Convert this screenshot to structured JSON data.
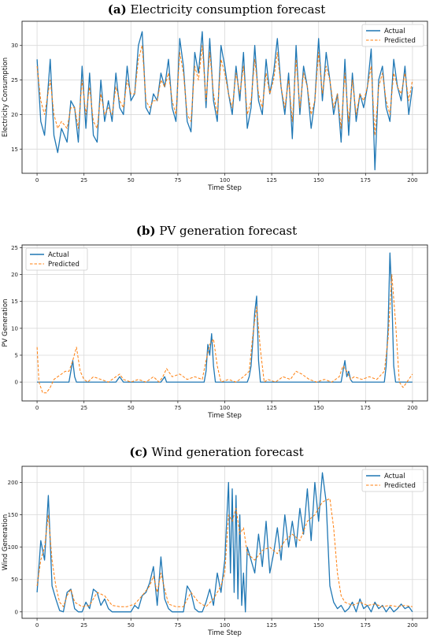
{
  "colors": {
    "actual": "#1f77b4",
    "predicted": "#ff7f0e",
    "grid": "#d9d9d9"
  },
  "chart_data": [
    {
      "type": "line",
      "title_letter": "(a)",
      "title": "Electricity consumption forecast",
      "xlabel": "Time Step",
      "ylabel": "Electricity Consumption",
      "xlim": [
        -8,
        208
      ],
      "ylim": [
        11.5,
        33.5
      ],
      "xticks": [
        0,
        25,
        50,
        75,
        100,
        125,
        150,
        175,
        200
      ],
      "yticks": [
        15,
        20,
        25,
        30
      ],
      "grid": true,
      "legend": "top-right",
      "series": [
        {
          "name": "Actual",
          "style": "solid",
          "x": [
            0,
            2,
            4,
            7,
            9,
            11,
            13,
            16,
            18,
            20,
            22,
            24,
            26,
            28,
            30,
            32,
            34,
            36,
            38,
            40,
            42,
            44,
            46,
            48,
            50,
            52,
            54,
            56,
            58,
            60,
            62,
            64,
            66,
            68,
            70,
            72,
            74,
            76,
            78,
            80,
            82,
            84,
            86,
            88,
            90,
            92,
            94,
            96,
            98,
            100,
            102,
            104,
            106,
            108,
            110,
            112,
            114,
            116,
            118,
            120,
            122,
            124,
            126,
            128,
            130,
            132,
            134,
            136,
            138,
            140,
            142,
            144,
            146,
            148,
            150,
            152,
            154,
            156,
            158,
            160,
            162,
            164,
            166,
            168,
            170,
            172,
            174,
            176,
            178,
            180,
            182,
            184,
            186,
            188,
            190,
            192,
            194,
            196,
            198,
            200
          ],
          "y": [
            28,
            19,
            17,
            28,
            17,
            14.5,
            18,
            16,
            22,
            21,
            16,
            27,
            18,
            26,
            17,
            16,
            25,
            19,
            22,
            19,
            26,
            21,
            20,
            27,
            22,
            23,
            30,
            32,
            21,
            20,
            23,
            22,
            26,
            24,
            28,
            21,
            19,
            31,
            27,
            19,
            17.5,
            29,
            26,
            32,
            21,
            31,
            22,
            19,
            30,
            27,
            23,
            20,
            27,
            22,
            29,
            18,
            21,
            30,
            22,
            20,
            28,
            23,
            26,
            31,
            24,
            20,
            26,
            16.5,
            30,
            20,
            27,
            24,
            18,
            22,
            31,
            22,
            29,
            25,
            20,
            23,
            16,
            28,
            17,
            26,
            19,
            23,
            21,
            24,
            29.5,
            12,
            25,
            27,
            21,
            19,
            28,
            24,
            22,
            27,
            20,
            24
          ]
        },
        {
          "name": "Predicted",
          "style": "dashed",
          "x": [
            0,
            2,
            4,
            7,
            9,
            11,
            13,
            16,
            18,
            20,
            22,
            24,
            26,
            28,
            30,
            32,
            34,
            36,
            38,
            40,
            42,
            44,
            46,
            48,
            50,
            52,
            54,
            56,
            58,
            60,
            62,
            64,
            66,
            68,
            70,
            72,
            74,
            76,
            78,
            80,
            82,
            84,
            86,
            88,
            90,
            92,
            94,
            96,
            98,
            100,
            102,
            104,
            106,
            108,
            110,
            112,
            114,
            116,
            118,
            120,
            122,
            124,
            126,
            128,
            130,
            132,
            134,
            136,
            138,
            140,
            142,
            144,
            146,
            148,
            150,
            152,
            154,
            156,
            158,
            160,
            162,
            164,
            166,
            168,
            170,
            172,
            174,
            176,
            178,
            180,
            182,
            184,
            186,
            188,
            190,
            192,
            194,
            196,
            198,
            200
          ],
          "y": [
            27,
            22,
            20,
            25,
            20,
            18,
            19,
            18,
            21,
            21,
            18,
            25,
            20,
            24,
            19,
            18,
            23,
            20,
            21,
            20,
            24,
            22,
            21,
            25,
            23,
            23,
            28,
            30,
            22,
            21,
            22,
            22,
            25,
            24,
            26,
            22,
            20,
            29,
            26,
            20,
            19,
            27,
            25,
            30,
            22,
            29,
            23,
            20,
            28,
            26,
            23,
            21,
            26,
            23,
            27,
            20,
            22,
            28,
            23,
            21,
            26,
            23,
            25,
            29,
            24,
            21,
            25,
            19,
            28,
            21,
            26,
            24,
            20,
            22,
            29,
            23,
            27,
            25,
            21,
            23,
            18,
            26,
            19,
            25,
            20,
            23,
            22,
            24,
            27,
            17,
            24,
            26,
            22,
            20,
            26,
            24,
            23,
            26,
            22,
            25
          ]
        }
      ]
    },
    {
      "type": "line",
      "title_letter": "(b)",
      "title": "PV generation forecast",
      "xlabel": "Time Step",
      "ylabel": "PV Generation",
      "xlim": [
        -8,
        208
      ],
      "ylim": [
        -3.5,
        25.5
      ],
      "xticks": [
        0,
        25,
        50,
        75,
        100,
        125,
        150,
        175,
        200
      ],
      "yticks": [
        0,
        5,
        10,
        15,
        20,
        25
      ],
      "grid": true,
      "legend": "top-left",
      "series": [
        {
          "name": "Actual",
          "style": "solid",
          "x": [
            0,
            17,
            18,
            19,
            20,
            21,
            42,
            43,
            44,
            45,
            46,
            66,
            67,
            68,
            69,
            89,
            90,
            91,
            92,
            93,
            94,
            95,
            112,
            113,
            114,
            115,
            116,
            117,
            118,
            119,
            162,
            163,
            164,
            165,
            166,
            167,
            168,
            169,
            185,
            186,
            187,
            188,
            189,
            190,
            191,
            200
          ],
          "y": [
            0,
            0,
            2,
            4,
            1,
            0,
            0,
            0.5,
            1,
            0.5,
            0,
            0,
            0.5,
            1,
            0,
            0,
            2,
            7,
            5,
            9,
            3,
            0,
            0,
            1,
            3,
            8,
            13,
            16,
            4,
            0,
            0,
            2,
            4,
            1,
            2,
            0.5,
            0,
            0,
            0,
            3,
            10,
            24,
            16,
            3,
            0,
            0
          ]
        },
        {
          "name": "Predicted",
          "style": "dashed",
          "x": [
            0,
            1,
            3,
            5,
            7,
            9,
            11,
            13,
            15,
            17,
            19,
            21,
            23,
            25,
            27,
            30,
            34,
            38,
            42,
            44,
            46,
            50,
            54,
            58,
            62,
            65,
            67,
            69,
            72,
            76,
            80,
            84,
            88,
            90,
            92,
            94,
            96,
            98,
            102,
            106,
            110,
            113,
            115,
            117,
            119,
            121,
            123,
            127,
            131,
            135,
            138,
            141,
            145,
            149,
            153,
            157,
            161,
            163,
            165,
            167,
            169,
            173,
            177,
            181,
            185,
            187,
            189,
            191,
            193,
            195,
            197,
            200
          ],
          "y": [
            6.5,
            0,
            -2,
            -2,
            -1,
            0.5,
            1,
            1.5,
            2,
            2,
            4,
            6.5,
            2,
            0.5,
            0,
            1,
            0.5,
            0,
            1,
            1.5,
            0.5,
            0,
            0.5,
            0,
            1,
            0,
            1,
            2.5,
            1,
            1.5,
            0.5,
            1,
            0.5,
            4,
            7,
            8,
            3,
            0,
            0.5,
            0,
            1,
            2,
            9,
            14,
            6,
            0,
            0.5,
            0,
            1,
            0.5,
            2,
            1.5,
            0.5,
            0,
            0.5,
            0,
            1,
            3,
            2,
            0.5,
            1,
            0.5,
            1,
            0.5,
            2,
            8,
            20,
            11,
            0,
            -1,
            0,
            1.5
          ]
        }
      ]
    },
    {
      "type": "line",
      "title_letter": "(c)",
      "title": "Wind generation forecast",
      "xlabel": "Time Step",
      "ylabel": "Wind Generation",
      "xlim": [
        -8,
        208
      ],
      "ylim": [
        -10,
        225
      ],
      "xticks": [
        0,
        25,
        50,
        75,
        100,
        125,
        150,
        175,
        200
      ],
      "yticks": [
        0,
        50,
        100,
        150,
        200
      ],
      "grid": true,
      "legend": "top-right",
      "series": [
        {
          "name": "Actual",
          "style": "solid",
          "x": [
            0,
            2,
            4,
            6,
            8,
            10,
            12,
            14,
            16,
            18,
            20,
            22,
            24,
            26,
            28,
            30,
            32,
            34,
            36,
            38,
            40,
            42,
            44,
            46,
            48,
            50,
            52,
            54,
            56,
            58,
            60,
            62,
            64,
            66,
            68,
            70,
            72,
            74,
            76,
            78,
            80,
            82,
            84,
            86,
            88,
            90,
            92,
            94,
            96,
            98,
            100,
            102,
            103,
            104,
            105,
            106,
            107,
            108,
            109,
            110,
            111,
            112,
            114,
            116,
            118,
            120,
            122,
            124,
            126,
            128,
            130,
            132,
            134,
            136,
            138,
            140,
            142,
            144,
            146,
            148,
            150,
            152,
            154,
            156,
            158,
            160,
            162,
            164,
            166,
            168,
            170,
            172,
            174,
            176,
            178,
            180,
            182,
            184,
            186,
            188,
            190,
            192,
            194,
            196,
            198,
            200
          ],
          "y": [
            30,
            110,
            80,
            180,
            40,
            20,
            2,
            0,
            30,
            35,
            5,
            0,
            0,
            15,
            5,
            35,
            30,
            10,
            20,
            5,
            0,
            0,
            0,
            0,
            0,
            0,
            10,
            5,
            25,
            30,
            45,
            70,
            10,
            85,
            20,
            5,
            0,
            0,
            0,
            0,
            40,
            30,
            5,
            0,
            0,
            15,
            35,
            10,
            60,
            30,
            80,
            200,
            60,
            190,
            30,
            180,
            20,
            150,
            10,
            60,
            0,
            100,
            80,
            60,
            120,
            70,
            140,
            60,
            90,
            130,
            80,
            150,
            100,
            140,
            100,
            160,
            120,
            190,
            110,
            200,
            140,
            215,
            170,
            40,
            15,
            5,
            10,
            0,
            5,
            15,
            0,
            20,
            5,
            10,
            0,
            15,
            5,
            10,
            0,
            8,
            0,
            5,
            12,
            5,
            8,
            0
          ]
        },
        {
          "name": "Predicted",
          "style": "dashed",
          "x": [
            0,
            2,
            4,
            6,
            8,
            10,
            12,
            14,
            16,
            18,
            20,
            24,
            28,
            32,
            36,
            40,
            44,
            48,
            52,
            56,
            60,
            62,
            64,
            66,
            68,
            70,
            74,
            78,
            82,
            86,
            90,
            94,
            98,
            100,
            102,
            104,
            106,
            108,
            110,
            112,
            116,
            120,
            124,
            128,
            132,
            136,
            140,
            144,
            148,
            152,
            156,
            158,
            160,
            162,
            164,
            168,
            172,
            176,
            180,
            184,
            188,
            192,
            196,
            200
          ],
          "y": [
            40,
            80,
            100,
            150,
            80,
            40,
            15,
            8,
            25,
            35,
            15,
            8,
            10,
            30,
            25,
            10,
            8,
            8,
            12,
            25,
            40,
            55,
            30,
            60,
            35,
            12,
            8,
            8,
            30,
            15,
            8,
            20,
            40,
            60,
            150,
            140,
            160,
            120,
            130,
            90,
            80,
            95,
            100,
            90,
            110,
            120,
            110,
            140,
            150,
            170,
            175,
            130,
            60,
            25,
            15,
            10,
            15,
            10,
            12,
            8,
            10,
            8,
            10,
            8
          ]
        }
      ]
    }
  ]
}
